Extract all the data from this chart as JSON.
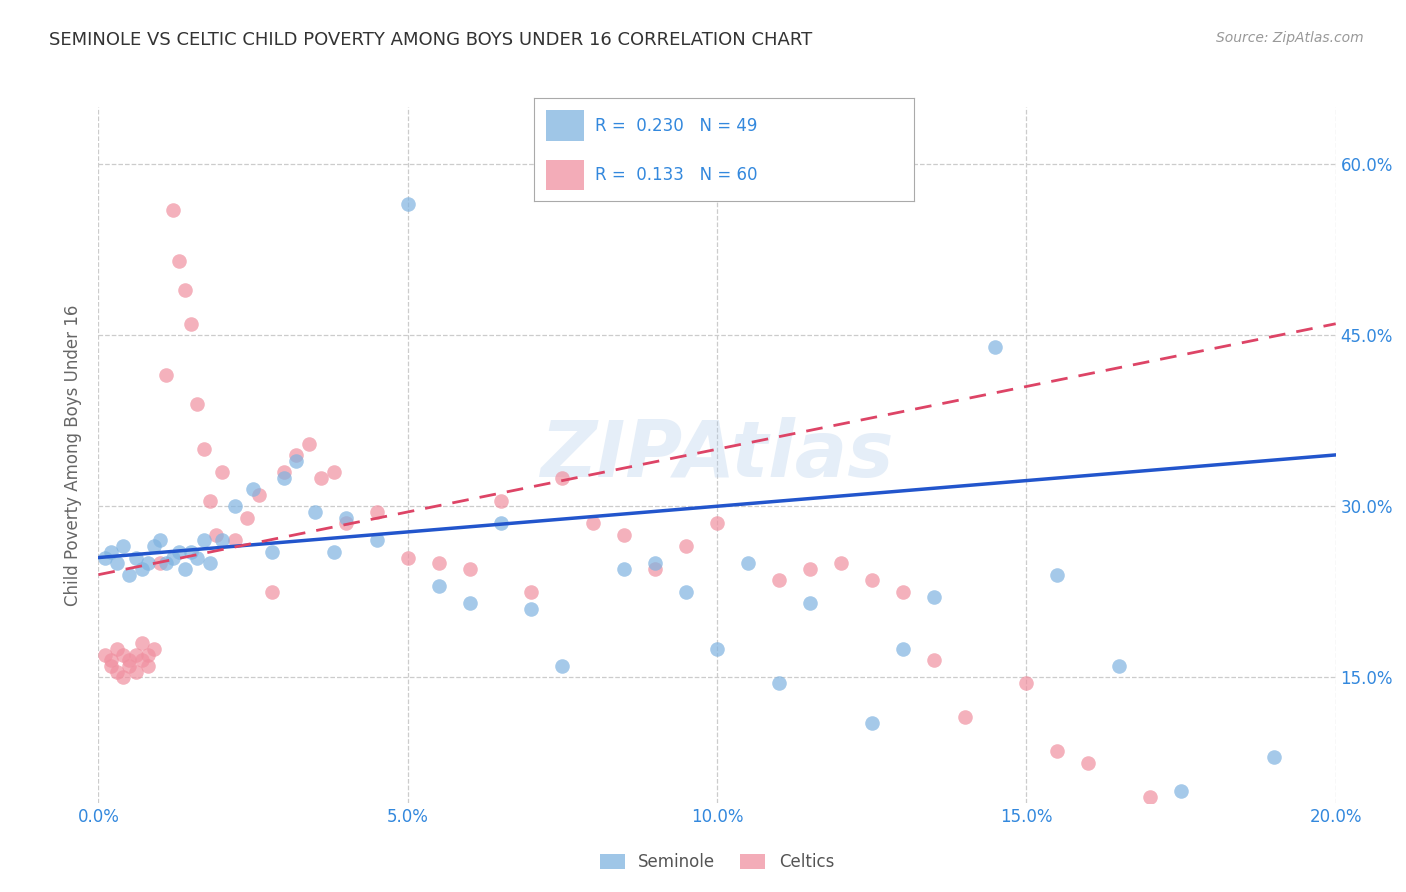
{
  "title": "SEMINOLE VS CELTIC CHILD POVERTY AMONG BOYS UNDER 16 CORRELATION CHART",
  "source": "Source: ZipAtlas.com",
  "xlabel_ticks": [
    "0.0%",
    "5.0%",
    "10.0%",
    "15.0%",
    "20.0%"
  ],
  "ylabel_ticks": [
    "15.0%",
    "30.0%",
    "45.0%",
    "60.0%"
  ],
  "ylabel_label": "Child Poverty Among Boys Under 16",
  "x_min": 0.0,
  "x_max": 0.2,
  "y_min": 0.04,
  "y_max": 0.65,
  "seminole_R": 0.23,
  "seminole_N": 49,
  "celtics_R": 0.133,
  "celtics_N": 60,
  "seminole_color": "#7fb3e0",
  "celtics_color": "#f090a0",
  "trend_seminole_color": "#2255cc",
  "trend_celtics_color": "#dd4466",
  "watermark_color": "#aac8e8",
  "background_color": "#ffffff",
  "grid_color": "#cccccc",
  "axis_label_color": "#3388dd",
  "title_color": "#333333",
  "seminole_x": [
    0.001,
    0.002,
    0.003,
    0.004,
    0.005,
    0.006,
    0.007,
    0.008,
    0.009,
    0.01,
    0.011,
    0.012,
    0.013,
    0.014,
    0.015,
    0.016,
    0.017,
    0.018,
    0.02,
    0.022,
    0.025,
    0.028,
    0.03,
    0.032,
    0.035,
    0.038,
    0.04,
    0.045,
    0.05,
    0.055,
    0.06,
    0.065,
    0.07,
    0.075,
    0.085,
    0.09,
    0.095,
    0.1,
    0.105,
    0.11,
    0.115,
    0.125,
    0.13,
    0.135,
    0.145,
    0.155,
    0.165,
    0.175,
    0.19
  ],
  "seminole_y": [
    0.255,
    0.26,
    0.25,
    0.265,
    0.24,
    0.255,
    0.245,
    0.25,
    0.265,
    0.27,
    0.25,
    0.255,
    0.26,
    0.245,
    0.26,
    0.255,
    0.27,
    0.25,
    0.27,
    0.3,
    0.315,
    0.26,
    0.325,
    0.34,
    0.295,
    0.26,
    0.29,
    0.27,
    0.565,
    0.23,
    0.215,
    0.285,
    0.21,
    0.16,
    0.245,
    0.25,
    0.225,
    0.175,
    0.25,
    0.145,
    0.215,
    0.11,
    0.175,
    0.22,
    0.44,
    0.24,
    0.16,
    0.05,
    0.08
  ],
  "celtics_x": [
    0.001,
    0.002,
    0.002,
    0.003,
    0.003,
    0.004,
    0.004,
    0.005,
    0.005,
    0.006,
    0.006,
    0.007,
    0.007,
    0.008,
    0.008,
    0.009,
    0.01,
    0.011,
    0.012,
    0.013,
    0.014,
    0.015,
    0.016,
    0.017,
    0.018,
    0.019,
    0.02,
    0.022,
    0.024,
    0.026,
    0.028,
    0.03,
    0.032,
    0.034,
    0.036,
    0.038,
    0.04,
    0.045,
    0.05,
    0.055,
    0.06,
    0.065,
    0.07,
    0.075,
    0.08,
    0.085,
    0.09,
    0.095,
    0.1,
    0.11,
    0.115,
    0.12,
    0.125,
    0.13,
    0.135,
    0.14,
    0.15,
    0.155,
    0.16,
    0.17
  ],
  "celtics_y": [
    0.17,
    0.165,
    0.16,
    0.175,
    0.155,
    0.17,
    0.15,
    0.16,
    0.165,
    0.17,
    0.155,
    0.18,
    0.165,
    0.17,
    0.16,
    0.175,
    0.25,
    0.415,
    0.56,
    0.515,
    0.49,
    0.46,
    0.39,
    0.35,
    0.305,
    0.275,
    0.33,
    0.27,
    0.29,
    0.31,
    0.225,
    0.33,
    0.345,
    0.355,
    0.325,
    0.33,
    0.285,
    0.295,
    0.255,
    0.25,
    0.245,
    0.305,
    0.225,
    0.325,
    0.285,
    0.275,
    0.245,
    0.265,
    0.285,
    0.235,
    0.245,
    0.25,
    0.235,
    0.225,
    0.165,
    0.115,
    0.145,
    0.085,
    0.075,
    0.045
  ],
  "trend_seminole_x0": 0.0,
  "trend_seminole_x1": 0.2,
  "trend_seminole_y0": 0.255,
  "trend_seminole_y1": 0.345,
  "trend_celtics_x0": 0.0,
  "trend_celtics_x1": 0.2,
  "trend_celtics_y0": 0.24,
  "trend_celtics_y1": 0.46
}
